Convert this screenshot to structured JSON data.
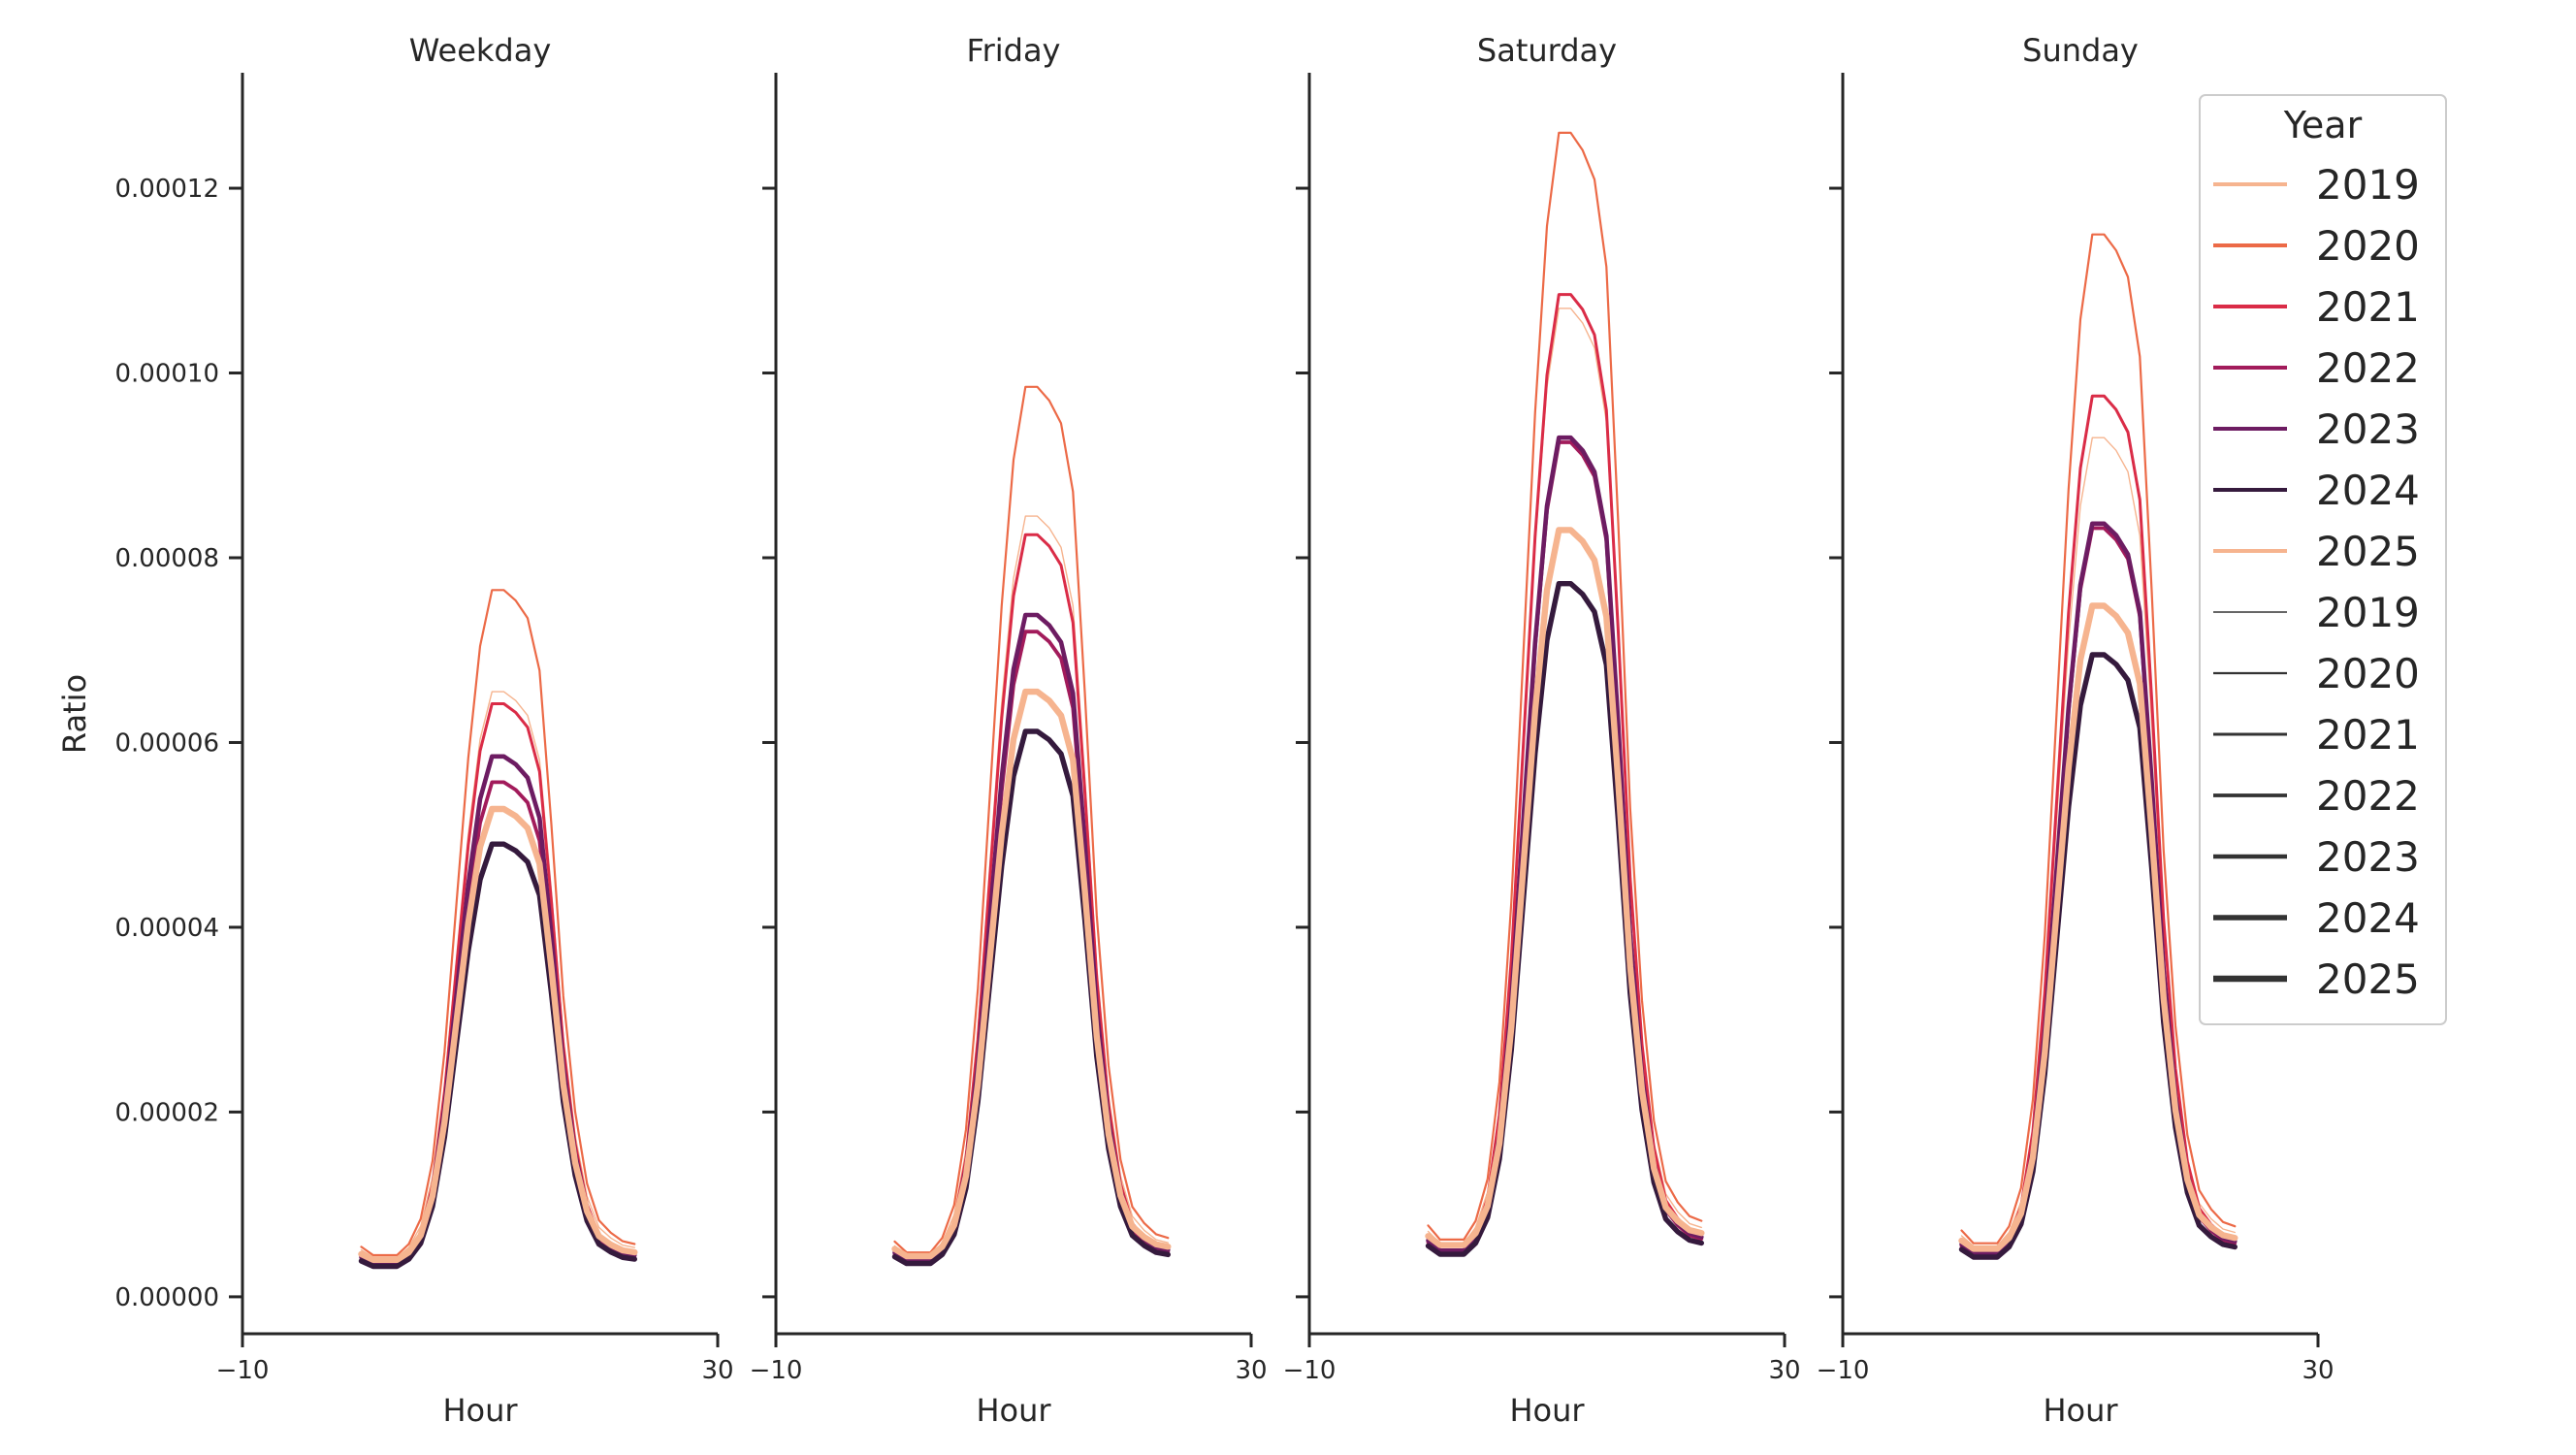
{
  "chart_data": {
    "type": "line",
    "ylabel": "Ratio",
    "xlabel": "Hour",
    "xlim": [
      -10,
      30
    ],
    "xticks": [
      -10,
      30
    ],
    "xtick_labels": [
      "−10",
      "30"
    ],
    "ylim": [
      -4e-06,
      0.0001325
    ],
    "yticks": [
      0,
      2e-05,
      4e-05,
      6e-05,
      8e-05,
      0.0001,
      0.00012
    ],
    "ytick_labels": [
      "0.00000",
      "0.00002",
      "0.00004",
      "0.00006",
      "0.00008",
      "0.00010",
      "0.00012"
    ],
    "hours": [
      0,
      1,
      2,
      3,
      4,
      5,
      6,
      7,
      8,
      9,
      10,
      11,
      12,
      13,
      14,
      15,
      16,
      17,
      18,
      19,
      20,
      21,
      22,
      23
    ],
    "profile_shape": [
      0.062,
      0.048,
      0.042,
      0.046,
      0.066,
      0.102,
      0.185,
      0.34,
      0.55,
      0.76,
      0.92,
      1.0,
      1.0,
      0.985,
      0.96,
      0.885,
      0.665,
      0.42,
      0.255,
      0.152,
      0.1,
      0.082,
      0.07,
      0.066
    ],
    "years": [
      {
        "year": "2019",
        "color": "#f6b48f"
      },
      {
        "year": "2020",
        "color": "#ec6a47"
      },
      {
        "year": "2021",
        "color": "#da2c47"
      },
      {
        "year": "2022",
        "color": "#a21b5b"
      },
      {
        "year": "2023",
        "color": "#6d1c62"
      },
      {
        "year": "2024",
        "color": "#351a3d"
      },
      {
        "year": "2025",
        "color": "#f6b48f"
      }
    ],
    "size_legend": [
      "2019",
      "2020",
      "2021",
      "2022",
      "2023",
      "2024",
      "2025"
    ],
    "legend_title": "Year",
    "legend_position": "top-right",
    "panels": [
      {
        "title": "Weekday",
        "series": [
          {
            "year": "2019",
            "peak": 6.55e-05,
            "night": 4.3e-06
          },
          {
            "year": "2020",
            "peak": 7.65e-05,
            "night": 4.5e-06
          },
          {
            "year": "2021",
            "peak": 6.42e-05,
            "night": 3.5e-06
          },
          {
            "year": "2022",
            "peak": 5.57e-05,
            "night": 3.4e-06
          },
          {
            "year": "2023",
            "peak": 5.85e-05,
            "night": 3.6e-06
          },
          {
            "year": "2024",
            "peak": 4.9e-05,
            "night": 3.3e-06
          },
          {
            "year": "2025",
            "peak": 5.28e-05,
            "night": 4e-06
          }
        ]
      },
      {
        "title": "Friday",
        "series": [
          {
            "year": "2019",
            "peak": 8.45e-05,
            "night": 4.5e-06
          },
          {
            "year": "2020",
            "peak": 9.85e-05,
            "night": 4.8e-06
          },
          {
            "year": "2021",
            "peak": 8.25e-05,
            "night": 3.8e-06
          },
          {
            "year": "2022",
            "peak": 7.2e-05,
            "night": 3.7e-06
          },
          {
            "year": "2023",
            "peak": 7.38e-05,
            "night": 3.9e-06
          },
          {
            "year": "2024",
            "peak": 6.12e-05,
            "night": 3.6e-06
          },
          {
            "year": "2025",
            "peak": 6.55e-05,
            "night": 4.4e-06
          }
        ]
      },
      {
        "title": "Saturday",
        "series": [
          {
            "year": "2019",
            "peak": 0.000107,
            "night": 5.8e-06
          },
          {
            "year": "2020",
            "peak": 0.000126,
            "night": 6.2e-06
          },
          {
            "year": "2021",
            "peak": 0.0001085,
            "night": 5e-06
          },
          {
            "year": "2022",
            "peak": 9.25e-05,
            "night": 4.8e-06
          },
          {
            "year": "2023",
            "peak": 9.3e-05,
            "night": 5e-06
          },
          {
            "year": "2024",
            "peak": 7.72e-05,
            "night": 4.6e-06
          },
          {
            "year": "2025",
            "peak": 8.3e-05,
            "night": 5.6e-06
          }
        ]
      },
      {
        "title": "Sunday",
        "series": [
          {
            "year": "2019",
            "peak": 9.3e-05,
            "night": 5.5e-06
          },
          {
            "year": "2020",
            "peak": 0.000115,
            "night": 5.8e-06
          },
          {
            "year": "2021",
            "peak": 9.75e-05,
            "night": 4.7e-06
          },
          {
            "year": "2022",
            "peak": 8.32e-05,
            "night": 4.5e-06
          },
          {
            "year": "2023",
            "peak": 8.37e-05,
            "night": 4.7e-06
          },
          {
            "year": "2024",
            "peak": 6.95e-05,
            "night": 4.3e-06
          },
          {
            "year": "2025",
            "peak": 7.48e-05,
            "night": 5.2e-06
          }
        ]
      }
    ]
  }
}
